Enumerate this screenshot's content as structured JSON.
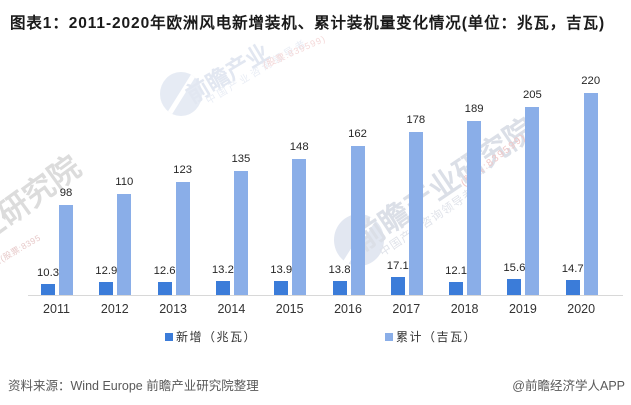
{
  "title": "图表1：2011-2020年欧洲风电新增装机、累计装机量变化情况(单位：兆瓦，吉瓦)",
  "chart_data": {
    "type": "bar",
    "categories": [
      "2011",
      "2012",
      "2013",
      "2014",
      "2015",
      "2016",
      "2017",
      "2018",
      "2019",
      "2020"
    ],
    "series": [
      {
        "name": "新增（兆瓦）",
        "unit": "兆瓦",
        "color": "#3b7cd9",
        "values": [
          10.3,
          12.9,
          12.6,
          13.2,
          13.9,
          13.8,
          17.1,
          12.1,
          15.6,
          14.7
        ]
      },
      {
        "name": "累计（吉瓦）",
        "unit": "吉瓦",
        "color": "#8aaee8",
        "values": [
          98,
          110,
          123,
          135,
          148,
          162,
          178,
          189,
          205,
          220
        ]
      }
    ],
    "title": "图表1：2011-2020年欧洲风电新增装机、累计装机量变化情况(单位：兆瓦，吉瓦)",
    "xlabel": "",
    "ylabel": "",
    "grid": false,
    "value_labels": true,
    "legend_position": "bottom"
  },
  "legend": {
    "items": [
      {
        "label": "新增（兆瓦）",
        "color": "#3b7cd9"
      },
      {
        "label": "累计（吉瓦）",
        "color": "#8aaee8"
      }
    ]
  },
  "footer": {
    "source": "资料来源：Wind Europe 前瞻产业研究院整理",
    "credit": "@前瞻经济学人APP"
  },
  "watermark": {
    "brand": "前瞻产业研究院",
    "brand_partial_top": "前瞻产业",
    "brand_partial_left": "业研究院",
    "tagline": "中国产业咨询领导者",
    "stock": "(股票:839599)",
    "stock_partial_left": "者(股票:8395"
  }
}
